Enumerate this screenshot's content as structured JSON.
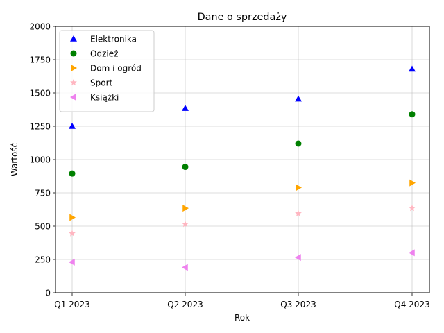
{
  "chart_data": {
    "type": "scatter",
    "title": "Dane o sprzedaży",
    "xlabel": "Rok",
    "ylabel": "Wartość",
    "categories": [
      "Q1 2023",
      "Q2 2023",
      "Q3 2023",
      "Q4 2023"
    ],
    "ylim": [
      0,
      2000
    ],
    "yticks": [
      0,
      250,
      500,
      750,
      1000,
      1250,
      1500,
      1750,
      2000
    ],
    "grid": true,
    "legend_position": "top-left",
    "series": [
      {
        "name": "Elektronika",
        "color": "#0000ff",
        "marker": "triangle-up",
        "values": [
          1250,
          1385,
          1455,
          1680
        ]
      },
      {
        "name": "Odzież",
        "color": "#008000",
        "marker": "circle",
        "values": [
          895,
          945,
          1120,
          1340
        ]
      },
      {
        "name": "Dom i ogród",
        "color": "#ffa500",
        "marker": "triangle-right",
        "values": [
          565,
          635,
          790,
          825
        ]
      },
      {
        "name": "Sport",
        "color": "#ffb6c1",
        "marker": "star",
        "values": [
          445,
          515,
          595,
          635
        ]
      },
      {
        "name": "Książki",
        "color": "#ee82ee",
        "marker": "triangle-left",
        "values": [
          230,
          190,
          265,
          300
        ]
      }
    ]
  }
}
